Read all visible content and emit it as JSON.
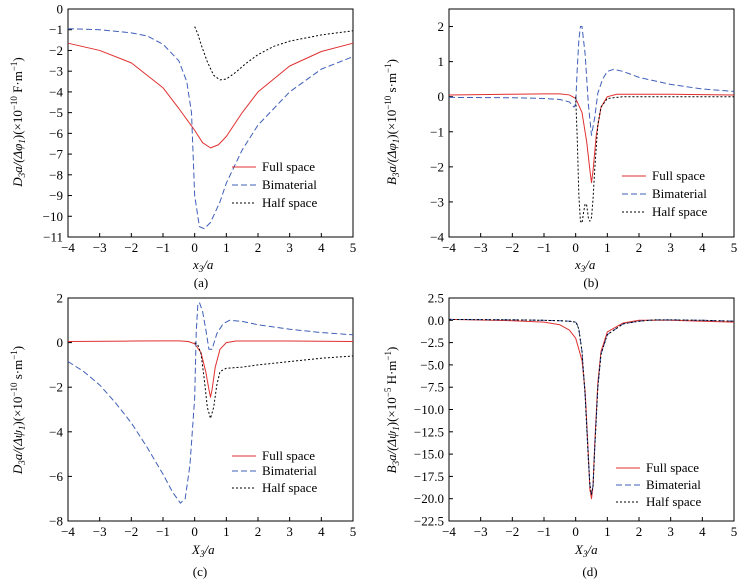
{
  "legend_labels": [
    "Full space",
    "Bimaterial",
    "Half space"
  ],
  "colors": {
    "full": "#e03030",
    "bimaterial": "#3f5fb8",
    "half": "#000000"
  },
  "chart_data": [
    {
      "type": "line",
      "panel": "(a)",
      "xlabel": "x3/a",
      "ylabel": "D3a/(Δφ1)(×10−10 F·m−1)",
      "xlim": [
        -4,
        5
      ],
      "ylim": [
        -11,
        0
      ],
      "xticks": [
        -4,
        -3,
        -2,
        -1,
        0,
        1,
        2,
        3,
        4,
        5
      ],
      "yticks": [
        -11,
        -10,
        -9,
        -8,
        -7,
        -6,
        -5,
        -4,
        -3,
        -2,
        -1,
        0
      ],
      "grid": false,
      "legend_position": "bottom-right",
      "series": [
        {
          "name": "Full space",
          "x": [
            -4,
            -3,
            -2,
            -1,
            -0.5,
            0,
            0.25,
            0.5,
            0.75,
            1,
            1.5,
            2,
            3,
            4,
            5
          ],
          "y": [
            -1.65,
            -2.0,
            -2.6,
            -3.8,
            -4.8,
            -5.85,
            -6.45,
            -6.7,
            -6.55,
            -6.15,
            -5.0,
            -4.0,
            -2.75,
            -2.05,
            -1.65
          ]
        },
        {
          "name": "Bimaterial",
          "x": [
            -4,
            -3,
            -2,
            -1.5,
            -1,
            -0.5,
            -0.25,
            -0.1,
            0,
            0.15,
            0.3,
            0.5,
            0.8,
            1,
            1.5,
            2,
            3,
            4,
            5
          ],
          "y": [
            -0.95,
            -1.0,
            -1.15,
            -1.3,
            -1.7,
            -2.5,
            -3.5,
            -5.0,
            -9.0,
            -10.5,
            -10.6,
            -10.3,
            -9.3,
            -8.4,
            -6.8,
            -5.6,
            -4.0,
            -2.9,
            -2.3
          ]
        },
        {
          "name": "Half space",
          "x": [
            0,
            0.1,
            0.2,
            0.4,
            0.6,
            0.8,
            1,
            1.3,
            1.6,
            2,
            2.5,
            3,
            4,
            5
          ],
          "y": [
            -0.85,
            -1.2,
            -1.7,
            -2.55,
            -3.2,
            -3.42,
            -3.38,
            -3.05,
            -2.65,
            -2.2,
            -1.8,
            -1.55,
            -1.25,
            -1.05
          ]
        }
      ]
    },
    {
      "type": "line",
      "panel": "(b)",
      "xlabel": "x3/a",
      "ylabel": "B3a/(Δφ1)(×10−10 s·m−1)",
      "xlim": [
        -4,
        5
      ],
      "ylim": [
        -4,
        2.5
      ],
      "xticks": [
        -4,
        -3,
        -2,
        -1,
        0,
        1,
        2,
        3,
        4,
        5
      ],
      "yticks": [
        -4,
        -3,
        -2,
        -1,
        0,
        1,
        2
      ],
      "grid": false,
      "legend_position": "bottom-right",
      "series": [
        {
          "name": "Full space",
          "x": [
            -4,
            -2,
            -1,
            -0.5,
            -0.2,
            0,
            0.2,
            0.35,
            0.45,
            0.5,
            0.55,
            0.65,
            0.8,
            1,
            1.3,
            2,
            3,
            4,
            5
          ],
          "y": [
            0.05,
            0.07,
            0.08,
            0.08,
            0.05,
            -0.05,
            -0.45,
            -1.3,
            -2.1,
            -2.45,
            -2.1,
            -1.1,
            -0.3,
            0.0,
            0.07,
            0.07,
            0.07,
            0.06,
            0.05
          ]
        },
        {
          "name": "Bimaterial",
          "x": [
            -4,
            -2,
            -1,
            -0.5,
            -0.2,
            -0.05,
            0,
            0.05,
            0.1,
            0.15,
            0.2,
            0.3,
            0.4,
            0.5,
            0.6,
            0.7,
            0.85,
            1,
            1.2,
            1.5,
            2,
            3,
            4,
            5
          ],
          "y": [
            -0.02,
            -0.03,
            -0.05,
            -0.08,
            -0.15,
            -0.3,
            -0.2,
            0.8,
            1.6,
            2.0,
            2.0,
            1.2,
            -0.2,
            -1.1,
            -0.6,
            0.1,
            0.5,
            0.72,
            0.78,
            0.72,
            0.55,
            0.35,
            0.22,
            0.15
          ]
        },
        {
          "name": "Half space",
          "x": [
            0,
            0.05,
            0.1,
            0.15,
            0.2,
            0.25,
            0.3,
            0.35,
            0.4,
            0.45,
            0.5,
            0.55,
            0.6,
            0.7,
            0.8,
            1,
            1.5,
            2,
            3,
            4,
            5
          ],
          "y": [
            0.0,
            -1.2,
            -2.8,
            -3.55,
            -3.6,
            -3.3,
            -3.05,
            -3.1,
            -3.45,
            -3.55,
            -3.45,
            -2.9,
            -2.1,
            -0.8,
            -0.3,
            -0.05,
            0.0,
            0.0,
            0.0,
            0.0,
            0.0
          ]
        }
      ]
    },
    {
      "type": "line",
      "panel": "(c)",
      "xlabel": "X3/a",
      "ylabel": "D3a/(Δψ1)(×10−10 s·m−1)",
      "xlim": [
        -4,
        5
      ],
      "ylim": [
        -8,
        2
      ],
      "xticks": [
        -4,
        -3,
        -2,
        -1,
        0,
        1,
        2,
        3,
        4,
        5
      ],
      "yticks": [
        -8,
        -6,
        -4,
        -2,
        0,
        2
      ],
      "grid": false,
      "legend_position": "bottom-right",
      "series": [
        {
          "name": "Full space",
          "x": [
            -4,
            -2,
            -1,
            -0.5,
            -0.2,
            0,
            0.2,
            0.35,
            0.45,
            0.5,
            0.55,
            0.65,
            0.8,
            1,
            1.3,
            2,
            3,
            4,
            5
          ],
          "y": [
            0.05,
            0.07,
            0.08,
            0.08,
            0.05,
            -0.05,
            -0.45,
            -1.3,
            -2.1,
            -2.45,
            -2.1,
            -1.1,
            -0.3,
            0.0,
            0.07,
            0.07,
            0.07,
            0.06,
            0.05
          ]
        },
        {
          "name": "Bimaterial",
          "x": [
            -4,
            -3.5,
            -3,
            -2.5,
            -2,
            -1.5,
            -1,
            -0.7,
            -0.45,
            -0.3,
            -0.15,
            0,
            0.05,
            0.1,
            0.15,
            0.25,
            0.35,
            0.45,
            0.55,
            0.7,
            0.9,
            1.1,
            1.5,
            2,
            3,
            4,
            5
          ],
          "y": [
            -0.85,
            -1.3,
            -1.9,
            -2.7,
            -3.6,
            -4.7,
            -5.9,
            -6.7,
            -7.2,
            -7.0,
            -5.5,
            -2.5,
            0.5,
            1.7,
            1.8,
            1.4,
            0.6,
            -0.3,
            -0.3,
            0.4,
            0.85,
            1.0,
            0.95,
            0.8,
            0.6,
            0.45,
            0.35
          ]
        },
        {
          "name": "Half space",
          "x": [
            0,
            0.1,
            0.2,
            0.3,
            0.4,
            0.5,
            0.6,
            0.7,
            0.8,
            1,
            1.5,
            2,
            3,
            4,
            5
          ],
          "y": [
            0.0,
            -0.1,
            -0.5,
            -1.6,
            -2.9,
            -3.4,
            -2.9,
            -1.9,
            -1.3,
            -1.15,
            -1.1,
            -1.0,
            -0.85,
            -0.7,
            -0.6
          ]
        }
      ]
    },
    {
      "type": "line",
      "panel": "(d)",
      "xlabel": "X3/a",
      "ylabel": "B3a/(Δψ1)(×10−5 H·m−1)",
      "xlim": [
        -4,
        5
      ],
      "ylim": [
        -22.5,
        2.5
      ],
      "xticks": [
        -4,
        -3,
        -2,
        -1,
        0,
        1,
        2,
        3,
        4,
        5
      ],
      "yticks": [
        -22.5,
        -20.0,
        -17.5,
        -15.0,
        -12.5,
        -10.0,
        -7.5,
        -5.0,
        -2.5,
        0.0,
        2.5
      ],
      "grid": false,
      "legend_position": "bottom-right",
      "series": [
        {
          "name": "Full space",
          "x": [
            -4,
            -2,
            -1,
            -0.5,
            -0.2,
            0,
            0.2,
            0.3,
            0.4,
            0.45,
            0.5,
            0.55,
            0.6,
            0.7,
            0.8,
            1,
            1.5,
            2,
            3,
            4,
            5
          ],
          "y": [
            0.1,
            -0.05,
            -0.2,
            -0.5,
            -1.1,
            -2.0,
            -4.5,
            -8.0,
            -15.0,
            -19.0,
            -20.0,
            -18.5,
            -14.0,
            -7.0,
            -3.5,
            -1.3,
            -0.3,
            0.0,
            0.0,
            -0.1,
            -0.2
          ]
        },
        {
          "name": "Bimaterial",
          "x": [
            -4,
            -2,
            -1,
            -0.5,
            -0.2,
            0,
            0.05,
            0.1,
            0.2,
            0.3,
            0.4,
            0.45,
            0.5,
            0.55,
            0.6,
            0.7,
            0.8,
            1,
            1.5,
            2,
            2.5,
            3,
            4,
            5
          ],
          "y": [
            0.1,
            0.05,
            0.0,
            -0.05,
            -0.1,
            -0.2,
            -0.5,
            -1.0,
            -3.5,
            -8.5,
            -15.5,
            -18.5,
            -19.5,
            -18.5,
            -14.5,
            -7.5,
            -3.8,
            -1.6,
            -0.4,
            -0.1,
            0.05,
            0.05,
            0.0,
            -0.1
          ]
        },
        {
          "name": "Half space",
          "x": [
            -4,
            -2,
            -1,
            -0.5,
            -0.2,
            0,
            0.05,
            0.1,
            0.2,
            0.3,
            0.4,
            0.45,
            0.5,
            0.55,
            0.6,
            0.7,
            0.8,
            1,
            1.5,
            2,
            2.5,
            3,
            4,
            5
          ],
          "y": [
            0.1,
            0.05,
            0.0,
            -0.05,
            -0.1,
            -0.2,
            -0.5,
            -1.0,
            -3.5,
            -8.5,
            -15.5,
            -18.5,
            -19.5,
            -18.5,
            -14.5,
            -7.5,
            -3.8,
            -1.6,
            -0.4,
            -0.1,
            0.05,
            0.05,
            0.0,
            -0.1
          ]
        }
      ]
    }
  ]
}
